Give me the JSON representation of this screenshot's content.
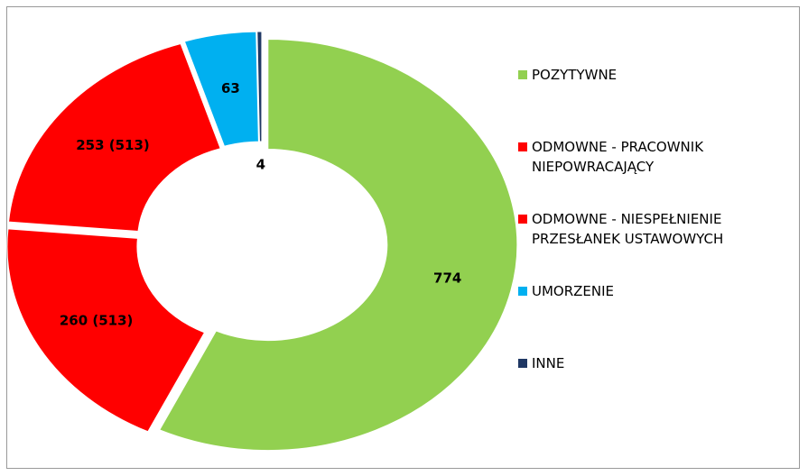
{
  "chart_data": {
    "type": "donut",
    "categories": [
      "POZYTYWNE",
      "ODMOWNE - PRACOWNIK NIEPOWRACAJĄCY",
      "ODMOWNE - NIESPEŁNIENIE PRZESŁANEK USTAWOWYCH",
      "UMORZENIE",
      "INNE"
    ],
    "values": [
      774,
      260,
      253,
      63,
      4
    ],
    "value_labels": [
      "774",
      "260 (513)",
      "253 (513)",
      "63",
      "4"
    ],
    "colors": [
      "#92d050",
      "#ff0000",
      "#ff0000",
      "#00b0f0",
      "#1f3864"
    ],
    "legend": "right"
  }
}
